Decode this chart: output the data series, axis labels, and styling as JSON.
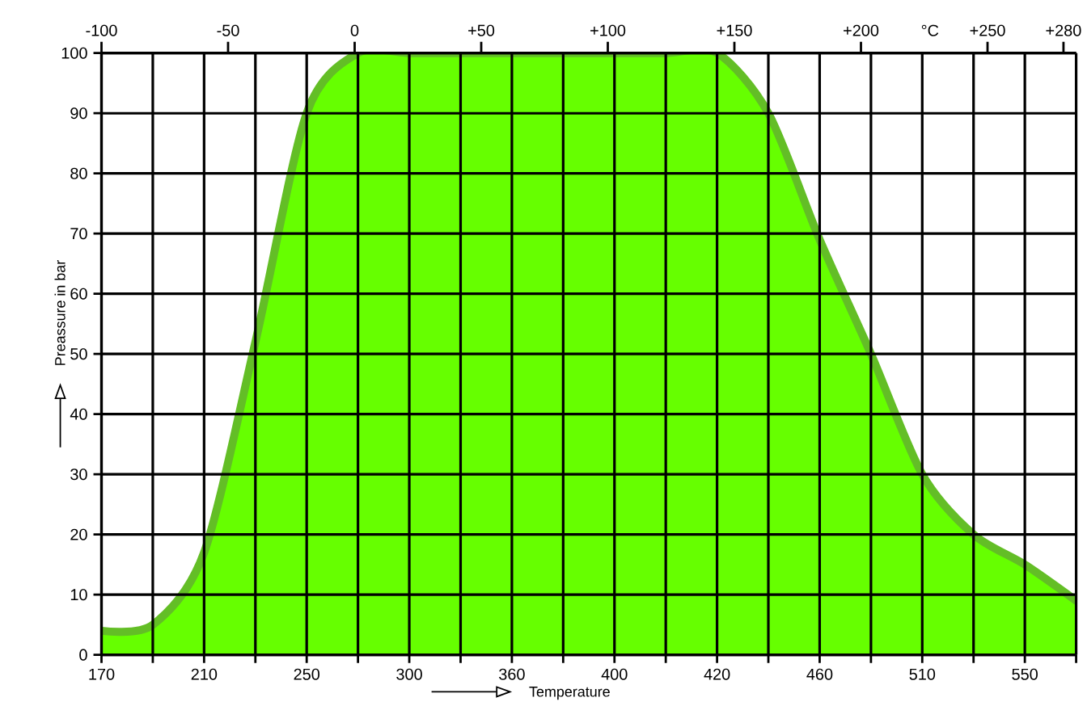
{
  "chart_data": {
    "type": "area",
    "xlabel": "Temperature",
    "ylabel": "Preassure in bar",
    "x2label": "°C",
    "categories": [
      "170",
      null,
      "210",
      null,
      "250",
      null,
      "300",
      null,
      "360",
      null,
      "400",
      null,
      "420",
      null,
      "460",
      null,
      "510",
      null,
      "550",
      null
    ],
    "series": [
      {
        "color": "#66ff00",
        "values": [
          4,
          5,
          17,
          52,
          90,
          100,
          100,
          100,
          100,
          100,
          100,
          100,
          100,
          90,
          69,
          50,
          30,
          20,
          15,
          9
        ]
      }
    ],
    "ylim": [
      0,
      100
    ],
    "yticks": [
      0,
      10,
      20,
      30,
      40,
      50,
      60,
      70,
      80,
      90,
      100
    ],
    "x2lim": [
      -100,
      285
    ],
    "x2ticks": [
      -100,
      -50,
      0,
      {
        "value": 50,
        "label": "+50"
      },
      {
        "value": 100,
        "label": "+100"
      },
      {
        "value": 150,
        "label": "+150"
      },
      {
        "value": 200,
        "label": "+200"
      },
      {
        "value": 250,
        "label": "+250"
      },
      {
        "value": 280,
        "label": "+280"
      }
    ],
    "grid": true
  }
}
